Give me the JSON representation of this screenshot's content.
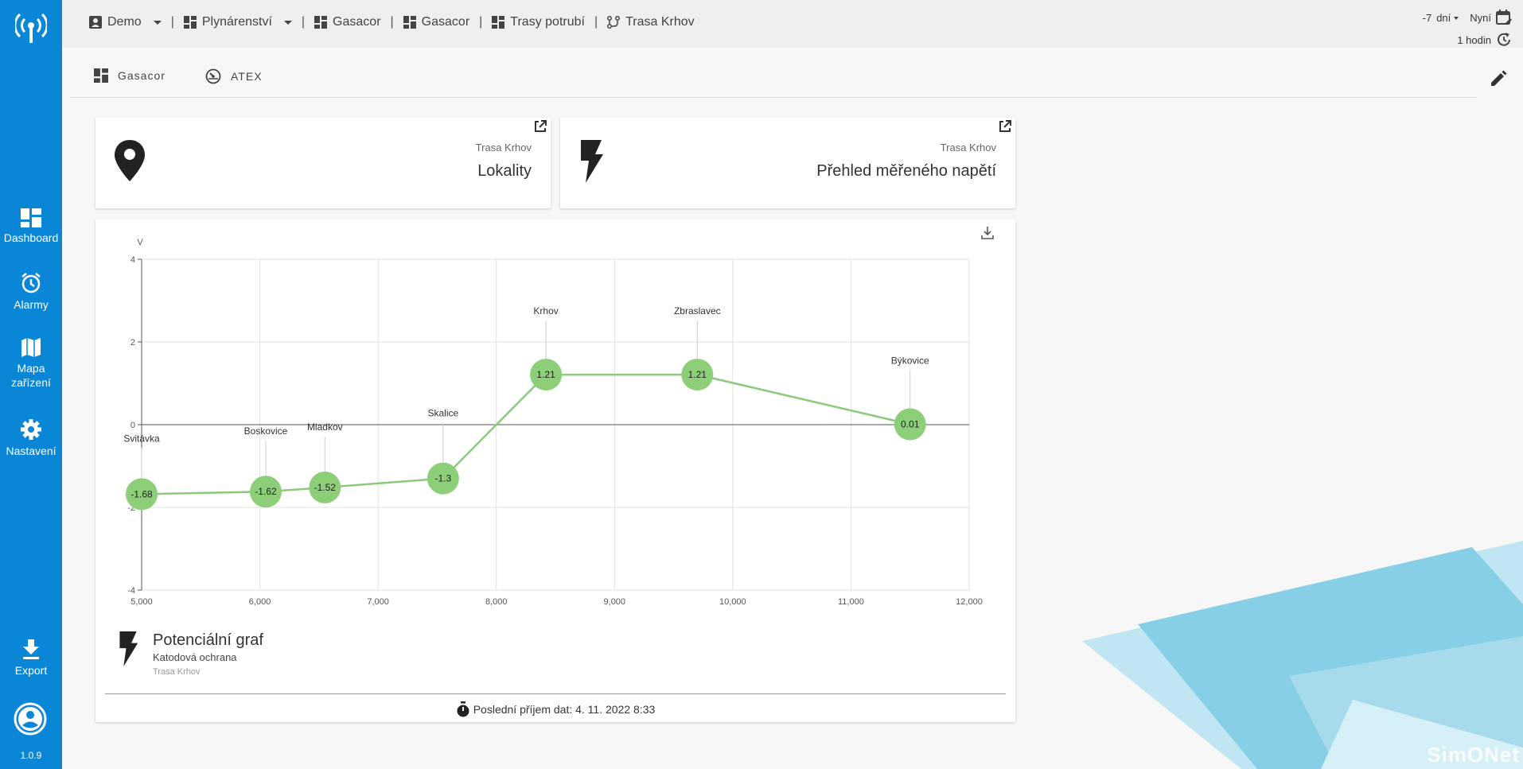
{
  "sidebar": {
    "items": [
      {
        "label": "Dashboard"
      },
      {
        "label": "Alarmy"
      },
      {
        "label": "Mapa zařízení"
      },
      {
        "label": "Nastavení"
      },
      {
        "label": "Export"
      }
    ],
    "version": "1.0.9"
  },
  "breadcrumbs": [
    {
      "label": "Demo"
    },
    {
      "label": "Plynárenství"
    },
    {
      "label": "Gasacor"
    },
    {
      "label": "Gasacor"
    },
    {
      "label": "Trasy potrubí"
    },
    {
      "label": "Trasa Krhov"
    }
  ],
  "time": {
    "range_value": "-7",
    "range_unit": "dní",
    "range_end": "Nyní",
    "refresh": "1 hodin"
  },
  "tabs": [
    {
      "label": "Gasacor"
    },
    {
      "label": "ATEX"
    }
  ],
  "cards": [
    {
      "subtitle": "Trasa Krhov",
      "title": "Lokality"
    },
    {
      "subtitle": "Trasa Krhov",
      "title": "Přehled měřeného napětí"
    }
  ],
  "chart_panel": {
    "title": "Potenciální graf",
    "subtitle": "Katodová ochrana",
    "caption": "Trasa Krhov",
    "last_data": "Poslední příjem dat: 4. 11. 2022 8:33"
  },
  "chart_data": {
    "type": "line",
    "ylabel": "V",
    "xlabel": "",
    "xlim": [
      5000,
      12000
    ],
    "ylim": [
      -4,
      4
    ],
    "x_ticks": [
      "5,000",
      "6,000",
      "7,000",
      "8,000",
      "9,000",
      "10,000",
      "11,000",
      "12,000"
    ],
    "y_ticks": [
      "4",
      "2",
      "0",
      "-2",
      "-4"
    ],
    "grid": true,
    "series": [
      {
        "points": [
          {
            "x": 5000,
            "y": -1.68,
            "label": "Svitávka",
            "value_label": "-1.68"
          },
          {
            "x": 6050,
            "y": -1.62,
            "label": "Boskovice",
            "value_label": "-1.62"
          },
          {
            "x": 6550,
            "y": -1.52,
            "label": "Mladkov",
            "value_label": "-1.52"
          },
          {
            "x": 7550,
            "y": -1.3,
            "label": "Skalice",
            "value_label": "-1.3"
          },
          {
            "x": 8420,
            "y": 1.21,
            "label": "Krhov",
            "value_label": "1.21"
          },
          {
            "x": 9700,
            "y": 1.21,
            "label": "Zbraslavec",
            "value_label": "1.21"
          },
          {
            "x": 11500,
            "y": 0.01,
            "label": "Býkovice",
            "value_label": "0.01"
          }
        ]
      }
    ],
    "colors": {
      "line": "#8cc97a",
      "marker": "#8ccf78"
    }
  },
  "branding": "SimONet"
}
